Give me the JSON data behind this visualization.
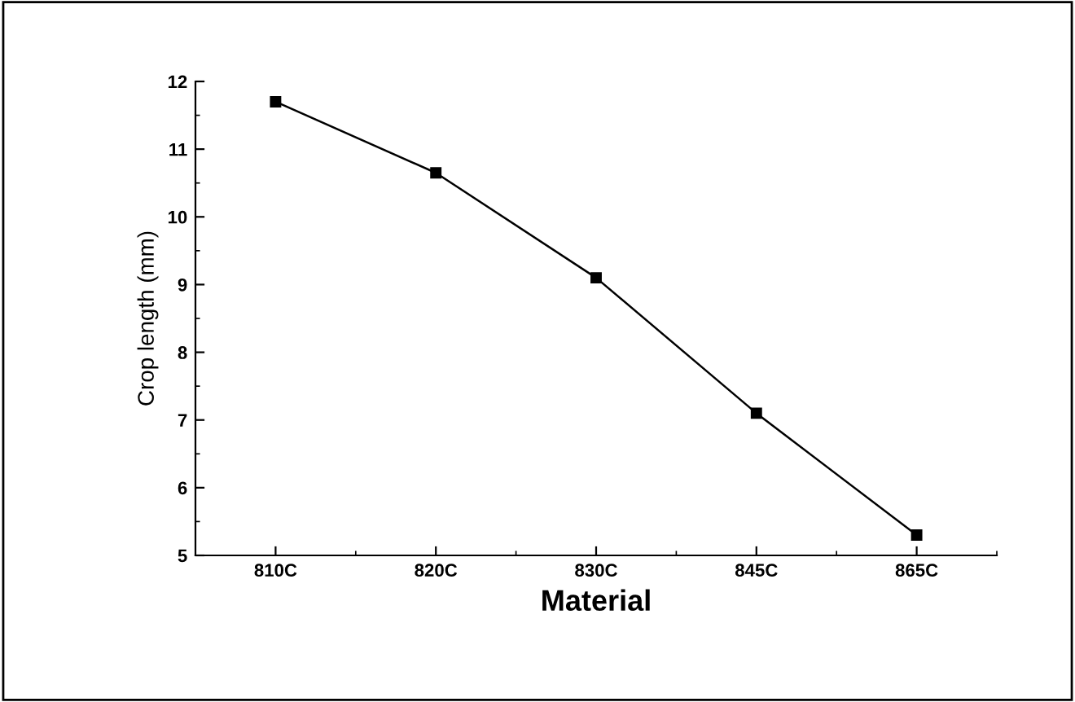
{
  "chart_data": {
    "type": "line",
    "xlabel": "Material",
    "ylabel": "Crop length (mm)",
    "categories": [
      "810C",
      "820C",
      "830C",
      "845C",
      "865C"
    ],
    "values": [
      11.7,
      10.65,
      9.1,
      7.1,
      5.3
    ],
    "color": "#000000",
    "marker": "square",
    "line_style": "solid",
    "ylim": [
      5,
      12
    ],
    "yticks": [
      5,
      6,
      7,
      8,
      9,
      10,
      11,
      12
    ],
    "grid": false,
    "legend": false
  }
}
